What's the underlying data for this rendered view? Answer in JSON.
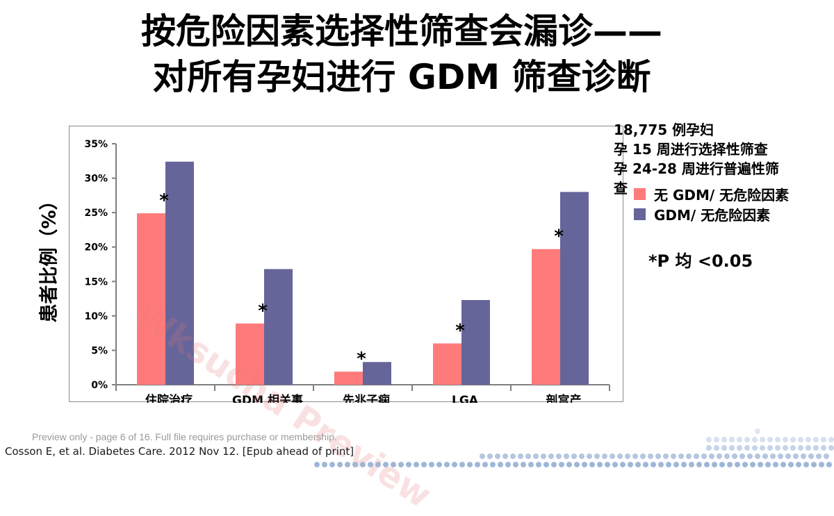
{
  "slide": {
    "title_line1": "按危险因素选择性筛查会漏诊——",
    "title_line2": "对所有孕妇进行 GDM 筛查诊断",
    "info_lines": [
      "18,775 例孕妇",
      "孕 15 周进行选择性筛查",
      "孕 24-28 周进行普遍性筛",
      "查"
    ],
    "p_note": "*P 均 <0.05",
    "preview_note": "Preview only - page 6 of 16. Full file requires purchase or membership.",
    "citation": "Cosson E, et al. Diabetes Care. 2012 Nov 12. [Epub ahead of print]",
    "watermark": "Wksucha Preview"
  },
  "chart_data": {
    "type": "bar",
    "title": "",
    "xlabel": "",
    "ylabel": "患者比例（%）",
    "ylim": [
      0,
      35
    ],
    "yticks": [
      "0%",
      "5%",
      "10%",
      "15%",
      "20%",
      "25%",
      "30%",
      "35%"
    ],
    "categories": [
      "住院治疗",
      "GDM 相关事件",
      "先兆子痫",
      "LGA",
      "剖宫产"
    ],
    "series": [
      {
        "name": "无 GDM/ 无危险因素",
        "color": "#ff7b7b",
        "values": [
          24.9,
          8.9,
          1.9,
          6.0,
          19.7
        ]
      },
      {
        "name": "GDM/ 无危险因素",
        "color": "#65659a",
        "values": [
          32.4,
          16.8,
          3.3,
          12.3,
          28.0
        ]
      }
    ],
    "significance_marker": "*",
    "significant": [
      true,
      true,
      true,
      true,
      true
    ],
    "grid": false,
    "legend_position": "right"
  }
}
